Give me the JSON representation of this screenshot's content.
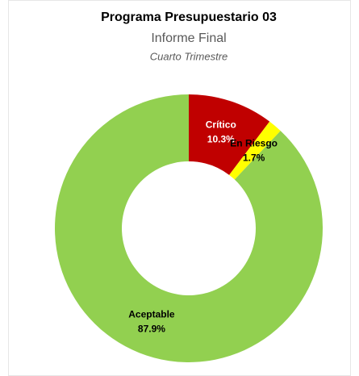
{
  "chart_data": {
    "type": "donut",
    "title": "Programa Presupuestario 03",
    "subtitle": "Informe Final",
    "caption": "Cuarto Trimestre",
    "categories": [
      "Crítico",
      "En Riesgo",
      "Aceptable"
    ],
    "values": [
      10.3,
      1.7,
      87.9
    ],
    "value_labels": [
      "10.3%",
      "1.7%",
      "87.9%"
    ],
    "colors": [
      "#c00000",
      "#ffff00",
      "#92d050"
    ],
    "label_colors": [
      "#ffffff",
      "#000000",
      "#000000"
    ]
  }
}
